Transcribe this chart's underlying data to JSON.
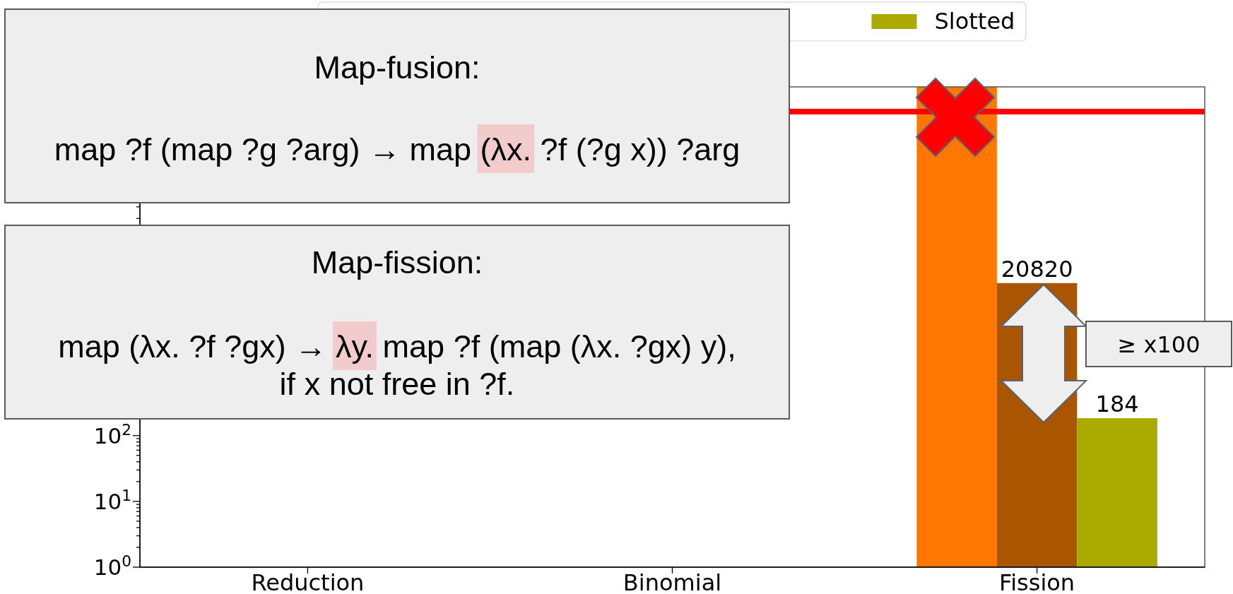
{
  "chart_data": {
    "type": "bar",
    "categories": [
      "Reduction",
      "Binomial",
      "Fission"
    ],
    "series": [
      {
        "color": "#ff7700",
        "values": [
          null,
          null,
          20000000
        ]
      },
      {
        "color": "#aa5500",
        "values": [
          null,
          null,
          20820
        ],
        "value_labels": [
          null,
          null,
          "20820"
        ]
      },
      {
        "name": "Slotted",
        "color": "#aaaa00",
        "values": [
          null,
          null,
          184
        ],
        "value_labels": [
          null,
          null,
          "184"
        ]
      }
    ],
    "log": true,
    "ylim": [
      1,
      20000000
    ],
    "yticks": [
      {
        "value": 1,
        "label": "10$^{0}$"
      },
      {
        "value": 2,
        "label": null
      },
      {
        "value": 3,
        "label": null
      },
      {
        "value": 4,
        "label": null
      },
      {
        "value": 5,
        "label": null
      },
      {
        "value": 6,
        "label": null
      },
      {
        "value": 7,
        "label": null
      },
      {
        "value": 8,
        "label": null
      },
      {
        "value": 9,
        "label": null
      },
      {
        "value": 10,
        "label": "10$^{1}$"
      },
      {
        "value": 20,
        "label": null
      },
      {
        "value": 30,
        "label": null
      },
      {
        "value": 40,
        "label": null
      },
      {
        "value": 50,
        "label": null
      },
      {
        "value": 60,
        "label": null
      },
      {
        "value": 70,
        "label": null
      },
      {
        "value": 80,
        "label": null
      },
      {
        "value": 90,
        "label": null
      },
      {
        "value": 100,
        "label": "10$^{2}$"
      },
      {
        "value": 200000,
        "label": null
      },
      {
        "value": 300000,
        "label": null
      }
    ],
    "legend": "top",
    "ref_lines": [
      {
        "axis": "y",
        "value": 8400000,
        "color": "#ff0000"
      }
    ],
    "annotations": [
      "Map-fusion:",
      "map ?f (map ?g ?arg) → map (λx. ?f (?g x)) ?arg",
      "Map-fission:",
      "map (λx. ?f ?gx) → λy. map ?f (map (λx. ?gx) y),",
      "if x not free in ?f.",
      "≥ x100"
    ]
  }
}
